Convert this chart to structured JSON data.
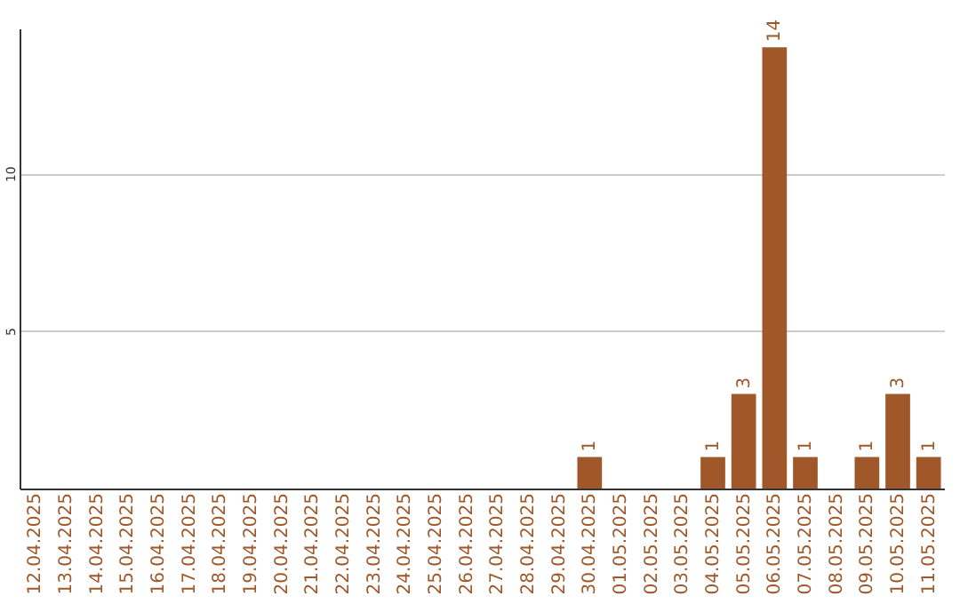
{
  "chart_data": {
    "type": "bar",
    "categories": [
      "12.04.2025",
      "13.04.2025",
      "14.04.2025",
      "15.04.2025",
      "16.04.2025",
      "17.04.2025",
      "18.04.2025",
      "19.04.2025",
      "20.04.2025",
      "21.04.2025",
      "22.04.2025",
      "23.04.2025",
      "24.04.2025",
      "25.04.2025",
      "26.04.2025",
      "27.04.2025",
      "28.04.2025",
      "29.04.2025",
      "30.04.2025",
      "01.05.2025",
      "02.05.2025",
      "03.05.2025",
      "04.05.2025",
      "05.05.2025",
      "06.05.2025",
      "07.05.2025",
      "08.05.2025",
      "09.05.2025",
      "10.05.2025",
      "11.05.2025"
    ],
    "values": [
      0,
      0,
      0,
      0,
      0,
      0,
      0,
      0,
      0,
      0,
      0,
      0,
      0,
      0,
      0,
      0,
      0,
      0,
      1,
      0,
      0,
      0,
      1,
      3,
      14,
      1,
      0,
      1,
      3,
      1
    ],
    "value_labels": [
      null,
      null,
      null,
      null,
      null,
      null,
      null,
      null,
      null,
      null,
      null,
      null,
      null,
      null,
      null,
      null,
      null,
      null,
      "1",
      null,
      null,
      null,
      "1",
      "3",
      "14",
      "1",
      null,
      "1",
      "3",
      "1"
    ],
    "color": "#a0582a",
    "ylim": [
      0,
      14.6
    ],
    "yticks": [
      5,
      10
    ],
    "grid": "y"
  }
}
